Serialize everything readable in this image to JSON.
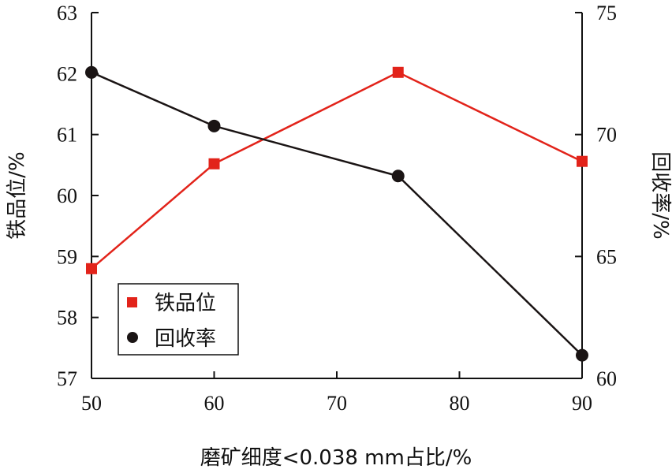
{
  "chart_data": {
    "type": "line",
    "x": [
      50,
      60,
      75,
      90
    ],
    "xlim": [
      50,
      90
    ],
    "xticks": [
      "50",
      "60",
      "70",
      "80",
      "90"
    ],
    "xlabel": "磨矿细度<0.038 mm占比/%",
    "y_left": {
      "label": "铁品位/%",
      "lim": [
        57,
        63
      ],
      "ticks": [
        "57",
        "58",
        "59",
        "60",
        "61",
        "62",
        "63"
      ]
    },
    "y_right": {
      "label": "回收率/%",
      "lim": [
        60,
        75
      ],
      "ticks": [
        "60",
        "65",
        "70",
        "75"
      ]
    },
    "series": [
      {
        "name": "铁品位",
        "axis": "left",
        "color": "#e2231a",
        "marker": "square",
        "values": [
          58.8,
          60.52,
          62.02,
          60.56
        ]
      },
      {
        "name": "回收率",
        "axis": "right",
        "color": "#1a1414",
        "marker": "circle",
        "values": [
          72.55,
          70.35,
          68.3,
          60.95
        ]
      }
    ],
    "legend_position": "bottom-left",
    "grid": false
  }
}
